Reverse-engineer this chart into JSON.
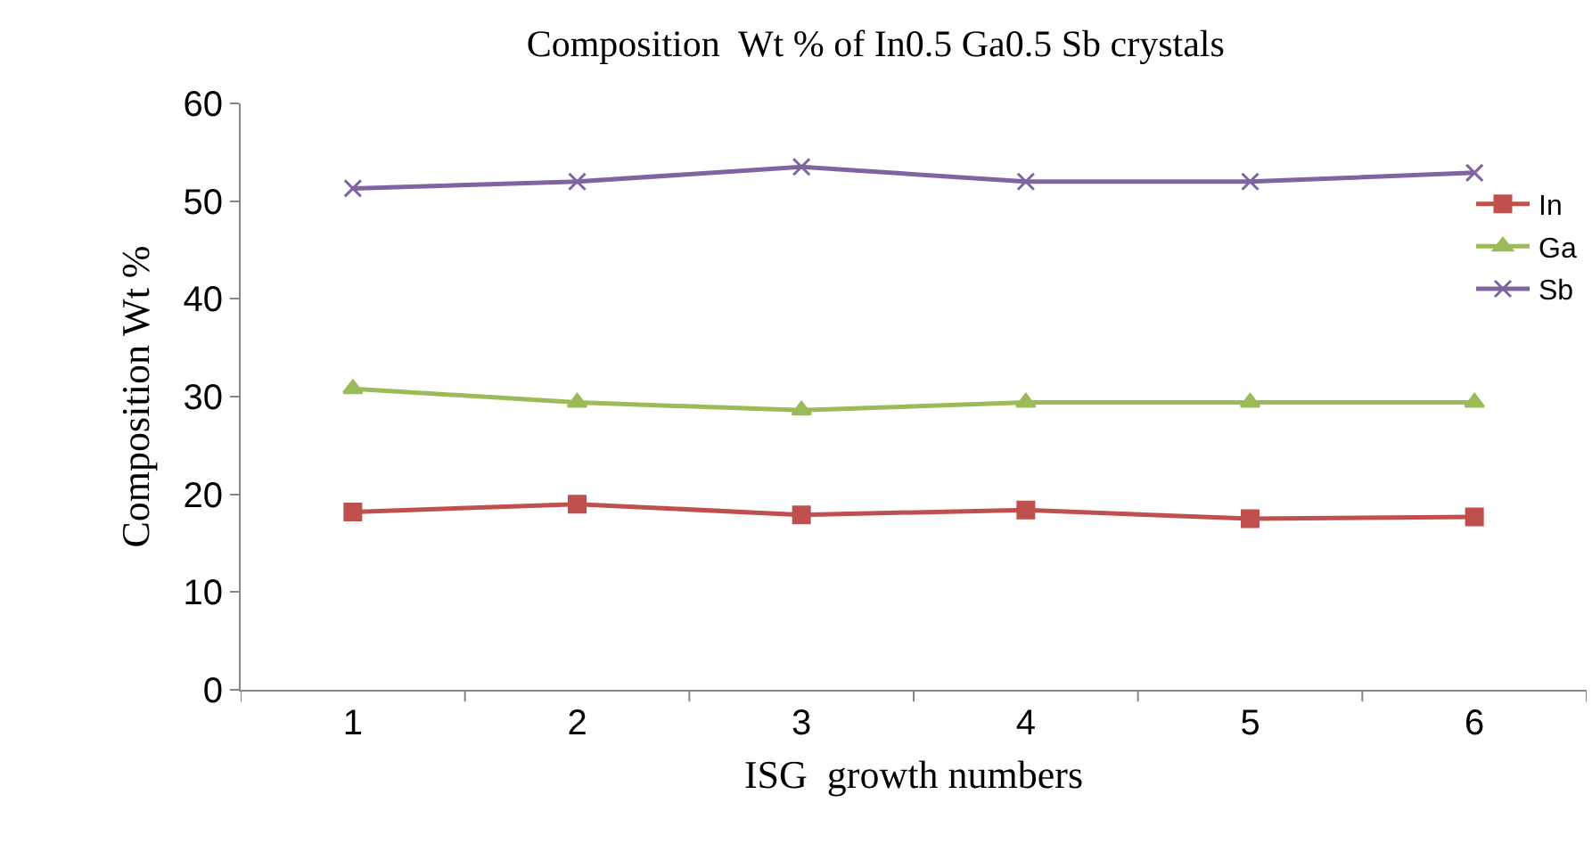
{
  "chart_data": {
    "type": "line",
    "title": "Composition  Wt % of In0.5 Ga0.5 Sb crystals",
    "xlabel": "ISG  growth numbers",
    "ylabel": "Composition Wt %",
    "categories": [
      "1",
      "2",
      "3",
      "4",
      "5",
      "6"
    ],
    "series": [
      {
        "name": "In",
        "color": "#c0504d",
        "marker": "square",
        "values": [
          18.2,
          19.0,
          17.9,
          18.4,
          17.5,
          17.7
        ]
      },
      {
        "name": "Ga",
        "color": "#9bbb59",
        "marker": "triangle",
        "values": [
          30.8,
          29.4,
          28.6,
          29.4,
          29.4,
          29.4
        ]
      },
      {
        "name": "Sb",
        "color": "#8064a2",
        "marker": "cross",
        "values": [
          51.3,
          52.0,
          53.5,
          52.0,
          52.0,
          52.9
        ]
      }
    ],
    "ylim": [
      0,
      60
    ],
    "yticks": [
      0,
      10,
      20,
      30,
      40,
      50,
      60
    ],
    "grid": false,
    "legend": "top right",
    "line_style": "solid"
  }
}
